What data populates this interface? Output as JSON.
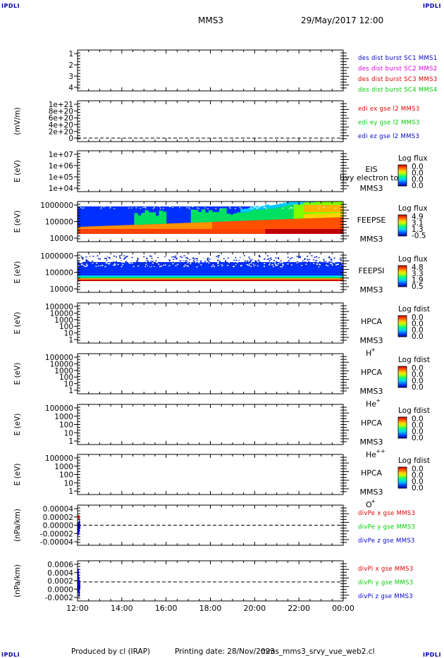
{
  "header": {
    "corner_tl": "IPDLI",
    "corner_tr": "IPDLI",
    "corner_bl": "IPDLI",
    "corner_br": "IPDLI",
    "mission": "MMS3",
    "datetime": "29/May/2017 12:00"
  },
  "footer": {
    "produced_by": "Produced by cl (IRAP)",
    "printing_date": "Printing date: 28/Nov/2023",
    "script": "mms_mms3_srvy_vue_web2.cl"
  },
  "colors": {
    "red": "#dd0000",
    "magenta": "#dd00dd",
    "green": "#00cc00",
    "blue": "#0000cc",
    "spectrogram_scale": [
      "#0000a0",
      "#0050ff",
      "#00d0ff",
      "#00ff80",
      "#c0ff00",
      "#ffd000",
      "#ff6000",
      "#d00000",
      "#900000"
    ]
  },
  "chart_data": {
    "type": "line",
    "x_axis": {
      "range": [
        "2017-05-29 12:00",
        "2017-05-30 00:00"
      ],
      "tick_labels": [
        "12:00",
        "14:00",
        "16:00",
        "18:00",
        "20:00",
        "22:00",
        "00:00"
      ]
    },
    "panels": [
      {
        "id": "panel1",
        "type": "line",
        "ylabel": "",
        "ylim": [
          0.5,
          4.5
        ],
        "yticks": [
          "1",
          "2",
          "3",
          "4"
        ],
        "legend": [
          {
            "text": "des dist burst SC1 MMS1",
            "color": "#0000cc"
          },
          {
            "text": "des dist burst SC2 MMS2",
            "color": "#dd00dd"
          },
          {
            "text": "des dist burst SC3 MMS3",
            "color": "#dd0000"
          },
          {
            "text": "des dist burst SC4 MMS4",
            "color": "#00cc00"
          }
        ]
      },
      {
        "id": "panel2",
        "type": "line",
        "ylabel": "(mV/m)",
        "ylim": [
          -1e+19,
          1.1e+21
        ],
        "yticks": [
          "1e+21",
          "8e+20",
          "6e+20",
          "4e+20",
          "2e+20",
          "0"
        ],
        "zero_line": true,
        "legend": [
          {
            "text": "edi ex gse l2 MMS3",
            "color": "#dd0000"
          },
          {
            "text": "edi ey gse l2 MMS3",
            "color": "#00cc00"
          },
          {
            "text": "edi ez gse l2 MMS3",
            "color": "#0000cc"
          }
        ]
      },
      {
        "id": "panel3",
        "type": "heatmap",
        "ylabel": "E (eV)",
        "yticks": [
          "1e+07",
          "1e+06",
          "1e+05",
          "1e+04"
        ],
        "labels": [
          "EIS",
          "MMS3"
        ],
        "overlay_text": "l)vy electron to",
        "colorbar": {
          "title": "Log flux",
          "ticks": [
            "0.0",
            "0.0",
            "0.0",
            "0.0"
          ]
        },
        "spectrogram": "empty"
      },
      {
        "id": "panel4",
        "type": "heatmap",
        "ylabel": "E (eV)",
        "yticks": [
          "1000000",
          "100000",
          "10000"
        ],
        "labels": [
          "FEEPSE",
          "MMS3"
        ],
        "colorbar": {
          "title": "Log flux",
          "ticks": [
            "4.9",
            "3.1",
            "1.3",
            "-0.5"
          ]
        },
        "spectrogram": "feepse"
      },
      {
        "id": "panel5",
        "type": "heatmap",
        "ylabel": "E (eV)",
        "yticks": [
          "1000000",
          "100000",
          "10000"
        ],
        "labels": [
          "FEEPSI",
          "MMS3"
        ],
        "colorbar": {
          "title": "Log flux",
          "ticks": [
            "4.8",
            "3.3",
            "1.9",
            "0.5"
          ]
        },
        "spectrogram": "feepsi"
      },
      {
        "id": "panel6",
        "type": "heatmap",
        "ylabel": "E (eV)",
        "yticks": [
          "100000",
          "10000",
          "1000",
          "100",
          "10",
          "1"
        ],
        "labels": [
          "HPCA",
          "MMS3"
        ],
        "species": "H",
        "species_sup": "+",
        "colorbar": {
          "title": "Log fdist",
          "ticks": [
            "0.0",
            "0.0",
            "0.0",
            "0.0"
          ]
        },
        "spectrogram": "empty"
      },
      {
        "id": "panel7",
        "type": "heatmap",
        "ylabel": "E (eV)",
        "yticks": [
          "100000",
          "10000",
          "1000",
          "100",
          "10",
          "1"
        ],
        "labels": [
          "HPCA",
          "MMS3"
        ],
        "species": "He",
        "species_sup": "+",
        "colorbar": {
          "title": "Log fdist",
          "ticks": [
            "0.0",
            "0.0",
            "0.0",
            "0.0"
          ]
        },
        "spectrogram": "empty"
      },
      {
        "id": "panel8",
        "type": "heatmap",
        "ylabel": "E (eV)",
        "yticks": [
          "100000",
          "1000",
          "100",
          "10",
          "1"
        ],
        "labels": [
          "HPCA",
          "MMS3"
        ],
        "species": "He",
        "species_sup": "++",
        "colorbar": {
          "title": "Log fdist",
          "ticks": [
            "0.0",
            "0.0",
            "0.0",
            "0.0"
          ]
        },
        "spectrogram": "empty"
      },
      {
        "id": "panel9",
        "type": "heatmap",
        "ylabel": "E (eV)",
        "yticks": [
          "100000",
          "1000",
          "100",
          "10",
          "1"
        ],
        "labels": [
          "HPCA",
          "MMS3"
        ],
        "species": "O",
        "species_sup": "+",
        "colorbar": {
          "title": "Log fdist",
          "ticks": [
            "0.0",
            "0.0",
            "0.0",
            "0.0"
          ]
        },
        "spectrogram": "empty"
      },
      {
        "id": "panel10",
        "type": "line",
        "ylabel": "(nPa/km)",
        "ylim": [
          -4e-05,
          4e-05
        ],
        "yticks": [
          "0.00004",
          "0.00002",
          "0.00000",
          "-0.00002",
          "-0.00004"
        ],
        "zero_line": true,
        "legend": [
          {
            "text": "divPe x gse MMS3",
            "color": "#dd0000"
          },
          {
            "text": "divPe y gse MMS3",
            "color": "#00cc00"
          },
          {
            "text": "divPe z gse MMS3",
            "color": "#0000cc"
          }
        ],
        "series": [
          {
            "name": "divPe x gse MMS3",
            "color": "#dd0000",
            "x": [
              0.0,
              0.03,
              0.06,
              0.1
            ],
            "y": [
              1.5e-05,
              2e-05,
              1.2e-05,
              1.8e-05
            ]
          },
          {
            "name": "divPe z gse MMS3",
            "color": "#0000cc",
            "x": [
              0.0,
              0.02,
              0.05,
              0.08,
              0.1,
              0.12
            ],
            "y": [
              -2e-05,
              5e-06,
              -1.5e-05,
              1e-05,
              -8e-06,
              2e-06
            ]
          }
        ]
      },
      {
        "id": "panel11",
        "type": "line",
        "ylabel": "(nPa/km)",
        "ylim": [
          -0.0003,
          0.0007
        ],
        "yticks": [
          "0.0006",
          "0.0004",
          "0.0002",
          "0.0000",
          "-0.0002"
        ],
        "zero_line": true,
        "legend": [
          {
            "text": "divPi x gse MMS3",
            "color": "#dd0000"
          },
          {
            "text": "divPi y gse MMS3",
            "color": "#00cc00"
          },
          {
            "text": "divPi z gse MMS3",
            "color": "#0000cc"
          }
        ],
        "series": [
          {
            "name": "divPi z gse MMS3",
            "color": "#0000cc",
            "x": [
              0.0,
              0.02,
              0.04,
              0.06,
              0.08,
              0.1,
              0.12
            ],
            "y": [
              0.0005,
              -0.0001,
              0.0003,
              -0.0002,
              0.0002,
              0.0,
              0.0001
            ]
          }
        ]
      }
    ]
  }
}
